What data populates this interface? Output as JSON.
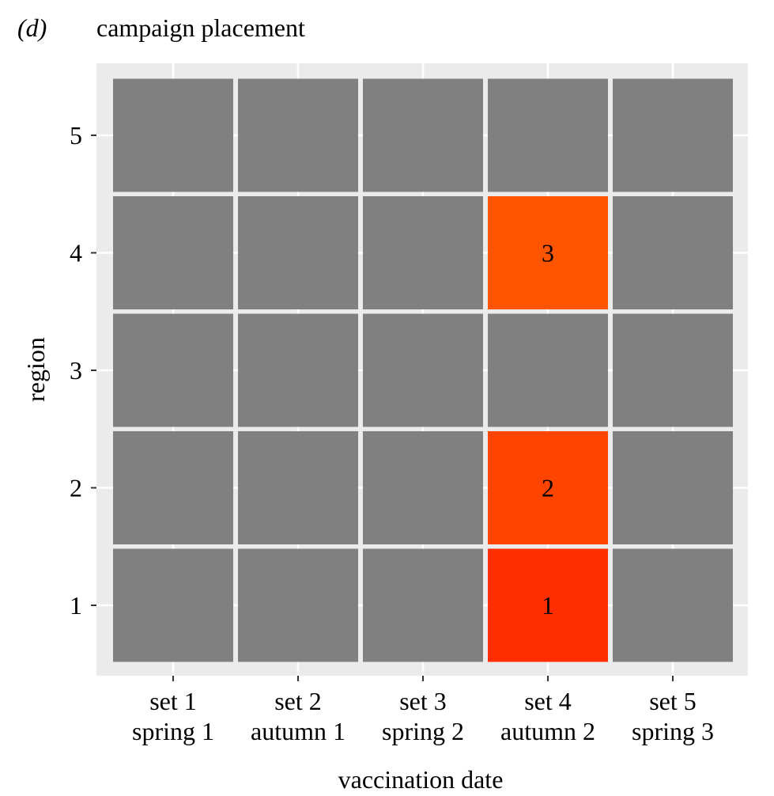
{
  "panel": {
    "letter": "d",
    "title": "campaign placement"
  },
  "chart_data": {
    "type": "heatmap",
    "title": "campaign placement",
    "xlabel": "vaccination date",
    "ylabel": "region",
    "x_categories": [
      [
        "set 1",
        "spring 1"
      ],
      [
        "set 2",
        "autumn 1"
      ],
      [
        "set 3",
        "spring 2"
      ],
      [
        "set 4",
        "autumn 2"
      ],
      [
        "set 5",
        "spring 3"
      ]
    ],
    "y_categories": [
      "1",
      "2",
      "3",
      "4",
      "5"
    ],
    "cells": [
      {
        "x": 4,
        "y": 1,
        "label": "1",
        "color": "#ff2d00"
      },
      {
        "x": 4,
        "y": 2,
        "label": "2",
        "color": "#ff4400"
      },
      {
        "x": 4,
        "y": 4,
        "label": "3",
        "color": "#ff5500"
      }
    ],
    "default_cell_color": "#808080",
    "grid": true,
    "legend": "none"
  },
  "colors": {
    "panel_background": "#ebebeb",
    "gridline": "#ffffff",
    "empty_cell": "#808080"
  }
}
